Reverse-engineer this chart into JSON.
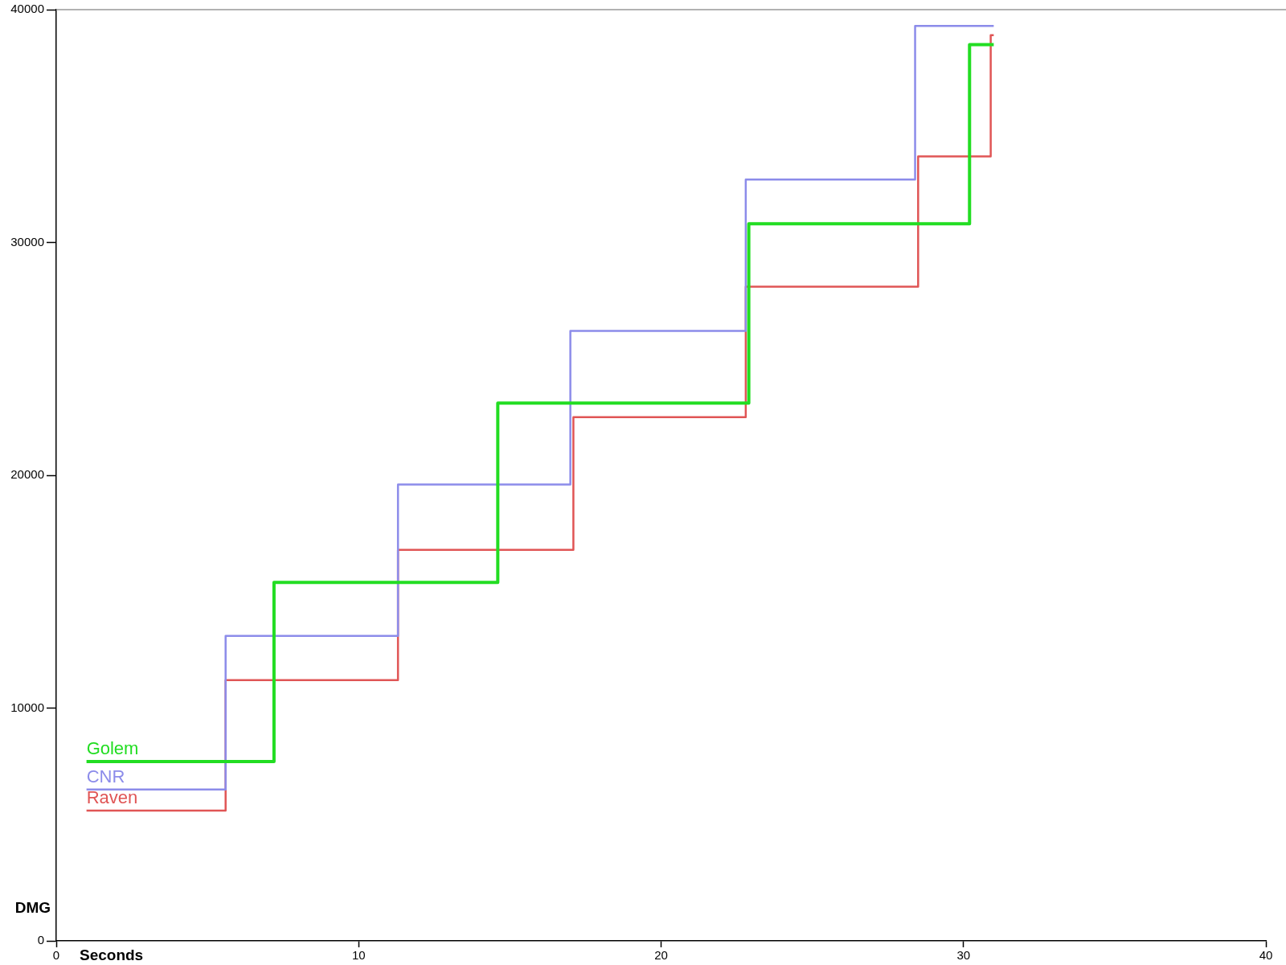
{
  "chart_data": {
    "type": "step",
    "xlabel": "Seconds",
    "ylabel": "DMG",
    "xlim": [
      0,
      40
    ],
    "xticks": [
      0,
      10,
      20,
      30,
      40
    ],
    "ylim": [
      0,
      40000
    ],
    "yticks": [
      0,
      10000,
      20000,
      30000,
      40000
    ],
    "series": [
      {
        "name": "Golem",
        "color": "#22dd22",
        "x": [
          1,
          7.2,
          14.6,
          22.9,
          30.2,
          31
        ],
        "values": [
          7700,
          15400,
          23100,
          30800,
          38500,
          38500
        ]
      },
      {
        "name": "CNR",
        "color": "#8c8cea",
        "x": [
          1,
          5.6,
          11.3,
          17,
          22.8,
          28.4,
          31
        ],
        "values": [
          6500,
          13100,
          19600,
          26200,
          32700,
          39300,
          39300
        ]
      },
      {
        "name": "Raven",
        "color": "#e05555",
        "x": [
          1,
          5.6,
          11.3,
          17.1,
          22.8,
          28.5,
          30.9,
          31
        ],
        "values": [
          5600,
          11200,
          16800,
          22500,
          28100,
          33700,
          38900,
          38900
        ]
      }
    ]
  }
}
